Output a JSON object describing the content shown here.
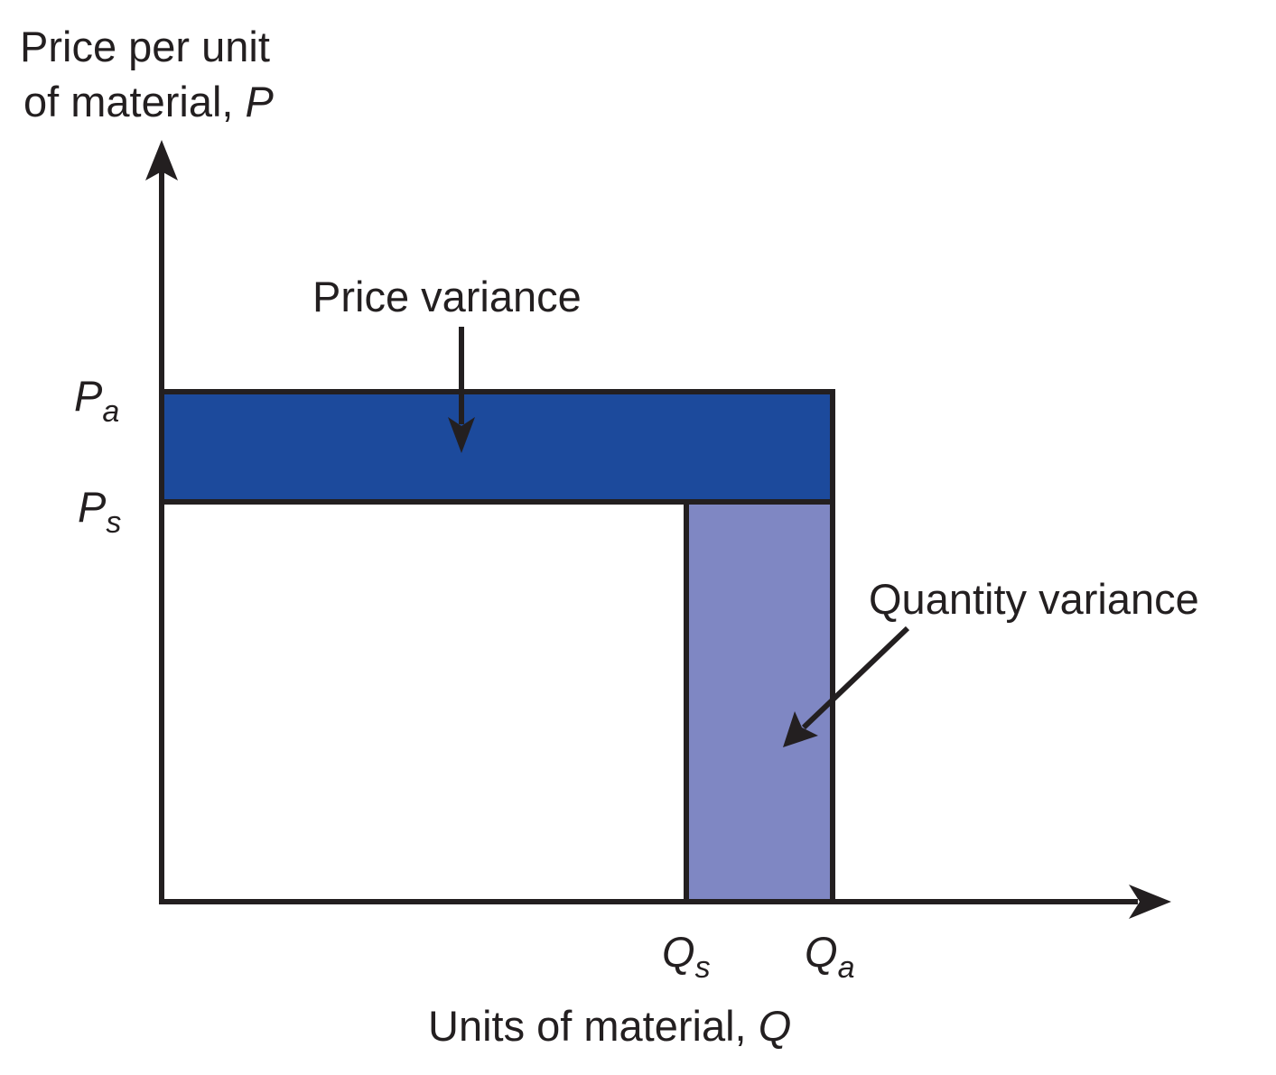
{
  "y_axis": {
    "title_line1": "Price per unit",
    "title_line2_text": "of material, ",
    "title_line2_symbol": "P"
  },
  "x_axis": {
    "title_text": "Units of material, ",
    "title_symbol": "Q"
  },
  "ticks": {
    "pa": {
      "symbol": "P",
      "subscript": "a"
    },
    "ps": {
      "symbol": "P",
      "subscript": "s"
    },
    "qs": {
      "symbol": "Q",
      "subscript": "s"
    },
    "qa": {
      "symbol": "Q",
      "subscript": "a"
    }
  },
  "annotations": {
    "price_variance": "Price variance",
    "quantity_variance": "Quantity variance"
  },
  "colors": {
    "price_variance_fill": "#1c4a9c",
    "quantity_variance_fill": "#7f87c3",
    "outline": "#231f20",
    "background": "#ffffff"
  }
}
